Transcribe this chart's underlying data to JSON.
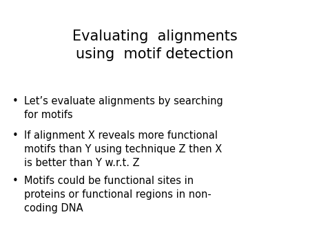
{
  "title": "Evaluating  alignments\nusing  motif detection",
  "bullet_points": [
    "Let’s evaluate alignments by searching\nfor motifs",
    "If alignment X reveals more functional\nmotifs than Y using technique Z then X\nis better than Y w.r.t. Z",
    "Motifs could be functional sites in\nproteins or functional regions in non-\ncoding DNA"
  ],
  "background_color": "#ffffff",
  "text_color": "#000000",
  "title_fontsize": 15,
  "bullet_fontsize": 10.5,
  "bullet_symbol": "•",
  "font_family": "DejaVu Sans"
}
